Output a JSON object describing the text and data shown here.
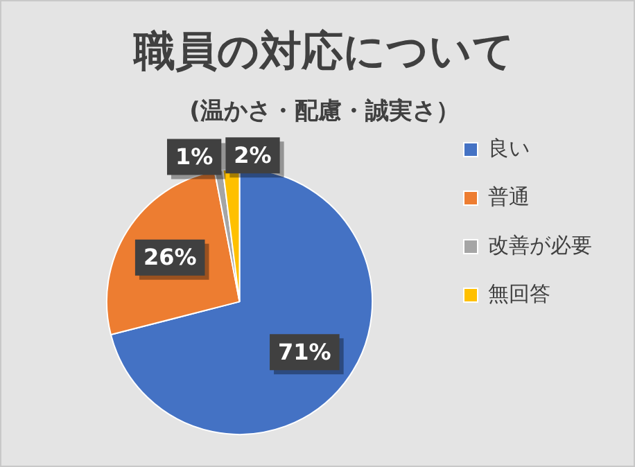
{
  "chart_data": {
    "type": "pie",
    "title": "職員の対応について",
    "subtitle": "(温かさ・配慮・誠実さ）",
    "categories": [
      "良い",
      "普通",
      "改善が必要",
      "無回答"
    ],
    "values": [
      71,
      26,
      1,
      2
    ],
    "value_labels": [
      "71%",
      "26%",
      "1%",
      "2%"
    ],
    "colors": [
      "#4472c4",
      "#ed7d31",
      "#a5a5a5",
      "#ffc000"
    ],
    "legend": "right"
  }
}
